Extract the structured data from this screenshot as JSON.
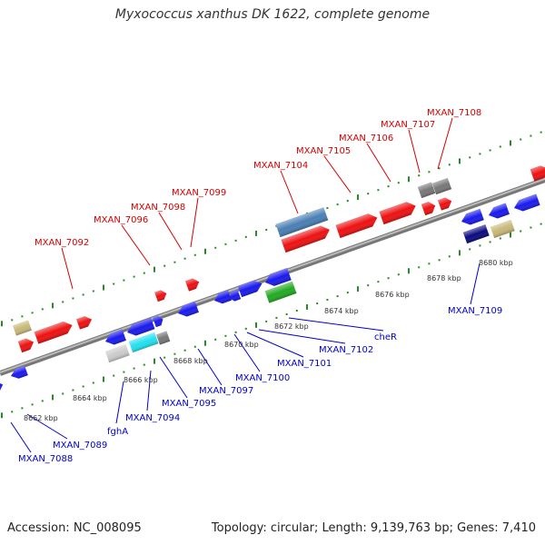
{
  "title": "Myxococcus xanthus DK 1622, complete genome",
  "footer": {
    "accession": "Accession: NC_008095",
    "summary": "Topology: circular; Length: 9,139,763 bp; Genes: 7,410"
  },
  "colors": {
    "plus_label": "#d40000",
    "minus_label": "#0000cc",
    "backbone": "#888888",
    "tick": "#2a8a2a",
    "gene_red": "#ee1111",
    "gene_blue": "#1a1aee",
    "gene_gray": "#777777",
    "gene_tan": "#c8b878",
    "gene_steel": "#4a7fb5",
    "gene_cyan": "#22e0f0",
    "gene_green": "#22aa22",
    "gene_navy": "#0a0a80",
    "gene_silver": "#cccccc"
  },
  "scale_labels": [
    {
      "kbp": 8662,
      "text": "8662 kbp"
    },
    {
      "kbp": 8664,
      "text": "8664 kbp"
    },
    {
      "kbp": 8666,
      "text": "8666 kbp"
    },
    {
      "kbp": 8668,
      "text": "8668 kbp"
    },
    {
      "kbp": 8670,
      "text": "8670 kbp"
    },
    {
      "kbp": 8672,
      "text": "8672 kbp"
    },
    {
      "kbp": 8674,
      "text": "8674 kbp"
    },
    {
      "kbp": 8676,
      "text": "8676 kbp"
    },
    {
      "kbp": 8678,
      "text": "8678 kbp"
    },
    {
      "kbp": 8680,
      "text": "8680 kbp"
    }
  ],
  "labels_plus": [
    "MXAN_7092",
    "MXAN_7096",
    "MXAN_7098",
    "MXAN_7099",
    "MXAN_7104",
    "MXAN_7105",
    "MXAN_7106",
    "MXAN_7107",
    "MXAN_7108"
  ],
  "labels_minus": [
    "MXAN_7088",
    "MXAN_7089",
    "fghA",
    "MXAN_7094",
    "MXAN_7095",
    "MXAN_7097",
    "MXAN_7100",
    "MXAN_7101",
    "MXAN_7102",
    "cheR",
    "MXAN_7109"
  ]
}
